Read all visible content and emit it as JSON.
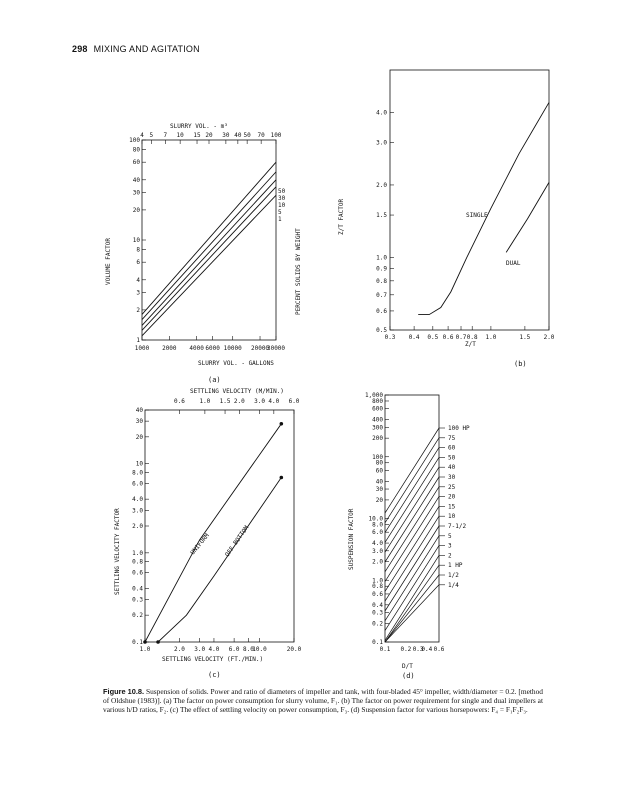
{
  "header": {
    "page_number": "298",
    "running_title": "MIXING AND AGITATION"
  },
  "panels": {
    "a": {
      "label": "(a)",
      "top_title": "SLURRY VOL. - m³",
      "top_ticks": [
        "4",
        "5",
        "7",
        "10",
        "15",
        "20",
        "30",
        "40",
        "50",
        "70",
        "100"
      ],
      "y_ticks": [
        "100",
        "80",
        "60",
        "40",
        "30",
        "20",
        "10",
        "8",
        "6",
        "4",
        "3",
        "2",
        "1"
      ],
      "x_ticks": [
        "1000",
        "2000",
        "4000",
        "6000",
        "10000",
        "20000",
        "30000"
      ],
      "x_title": "SLURRY VOL. - GALLONS",
      "y_title": "VOLUME FACTOR",
      "right_title": "PERCENT SOLIDS BY WEIGHT",
      "series_labels": [
        "50",
        "30",
        "10",
        "5",
        "1"
      ]
    },
    "b": {
      "label": "(b)",
      "y_ticks": [
        "4.0",
        "3.0",
        "2.0",
        "1.5",
        "1.0",
        "0.9",
        "0.8",
        "0.7",
        "0.6",
        "0.5"
      ],
      "x_ticks": [
        "0.3",
        "0.4",
        "0.5",
        "0.6",
        "0.7",
        "0.8",
        "1.0",
        "1.5",
        "2.0"
      ],
      "x_title": "Z/T",
      "y_title": "Z/T FACTOR",
      "single_label": "SINGLE",
      "dual_label": "DUAL"
    },
    "c": {
      "label": "(c)",
      "top_title": "SETTLING VELOCITY (M/MIN.)",
      "top_ticks": [
        "0.6",
        "1.0",
        "1.5",
        "2.0",
        "3.0",
        "4.0",
        "6.0"
      ],
      "y_ticks": [
        "40",
        "30",
        "20",
        "10",
        "8.0",
        "6.0",
        "4.0",
        "3.0",
        "2.0",
        "1.0",
        "0.8",
        "0.6",
        "0.4",
        "0.3",
        "0.2",
        "0.1"
      ],
      "x_ticks": [
        "1.0",
        "2.0",
        "3.0",
        "4.0",
        "6.0",
        "8.0",
        "10.0",
        "20.0"
      ],
      "x_title": "SETTLING VELOCITY (FT./MIN.)",
      "y_title": "SETTLING VELOCITY FACTOR",
      "uniform_label": "UNIFORM",
      "offbottom_label": "OFF BOTTOM"
    },
    "d": {
      "label": "(d)",
      "y_ticks": [
        "1,000",
        "800",
        "600",
        "400",
        "300",
        "200",
        "100",
        "80",
        "60",
        "40",
        "30",
        "20",
        "10.0",
        "8.0",
        "6.0",
        "4.0",
        "3.0",
        "2.0",
        "1.0",
        "0.8",
        "0.6",
        "0.4",
        "0.3",
        "0.2",
        "0.1"
      ],
      "x_ticks": [
        "0.1",
        "0.2",
        "0.3",
        "0.4",
        "0.6"
      ],
      "x_title": "D/T",
      "y_title": "SUSPENSION FACTOR",
      "hp_labels": [
        "100 HP",
        "75",
        "60",
        "50",
        "40",
        "30",
        "25",
        "20",
        "15",
        "10",
        "7-1/2",
        "5",
        "3",
        "2",
        "1 HP",
        "1/2",
        "1/4"
      ]
    }
  },
  "caption": {
    "figure_label": "Figure 10.8.",
    "text": "Suspension of solids. Power and ratio of diameters of impeller and tank, with four-bladed 45° impeller, width/diameter = 0.2. [method of Oldshue (1983)]. (a) The factor on power consumption for slurry volume, F₁. (b) The factor on power requirement for single and dual impellers at various h/D ratios, F₂. (c) The effect of settling velocity on power consumption, F₃. (d) Suspension factor for various horsepowers: F₄ = F₁F₂F₃."
  }
}
